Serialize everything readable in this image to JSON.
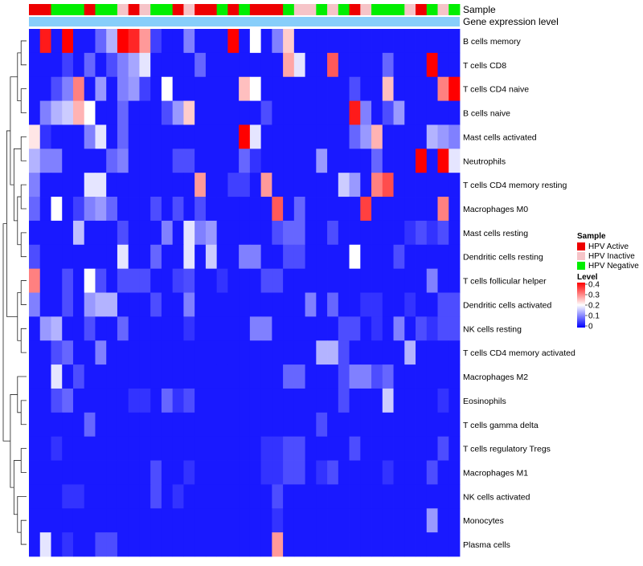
{
  "chart_data": {
    "type": "heatmap",
    "annotation_tracks": [
      "Sample",
      "Gene expression level"
    ],
    "sample_groups": {
      "title": "Sample",
      "entries": [
        {
          "label": "HPV Active",
          "color": "#ee0000"
        },
        {
          "label": "HPV Inactive",
          "color": "#f6c4c8"
        },
        {
          "label": "HPV Negative",
          "color": "#00ee00"
        }
      ]
    },
    "expression_bar_color": "#87cefa",
    "sample_annotation": [
      "A",
      "A",
      "N",
      "N",
      "N",
      "A",
      "N",
      "N",
      "I",
      "A",
      "I",
      "N",
      "N",
      "A",
      "I",
      "A",
      "A",
      "N",
      "A",
      "N",
      "A",
      "A",
      "A",
      "N",
      "I",
      "I",
      "N",
      "I",
      "N",
      "A",
      "I",
      "N",
      "N",
      "N",
      "I",
      "A",
      "N",
      "I",
      "N"
    ],
    "level_scale": {
      "title": "Level",
      "ticks": [
        "0.4",
        "0.3",
        "0.2",
        "0.1",
        "0"
      ],
      "range": [
        0,
        0.4
      ],
      "colors": [
        "#0000ff",
        "#ffffff",
        "#ff0000"
      ]
    },
    "rows": [
      "B cells memory",
      "T cells CD8",
      "T cells CD4 naive",
      "B cells naive",
      "Mast cells activated",
      "Neutrophils",
      "T cells CD4 memory resting",
      "Macrophages M0",
      "Mast cells resting",
      "Dendritic cells resting",
      "T cells follicular helper",
      "Dendritic cells activated",
      "NK cells resting",
      "T cells CD4 memory activated",
      "Macrophages M2",
      "Eosinophils",
      "T cells gamma delta",
      "T cells regulatory  Tregs",
      "Macrophages M1",
      "NK cells activated",
      "Monocytes",
      "Plasma cells"
    ],
    "values": [
      [
        0.02,
        0.38,
        0.02,
        0.4,
        0.02,
        0.02,
        0.08,
        0.14,
        0.4,
        0.37,
        0.28,
        0.05,
        0.02,
        0.02,
        0.1,
        0.02,
        0.02,
        0.02,
        0.4,
        0.02,
        0.2,
        0.02,
        0.1,
        0.24,
        0.02,
        0.02,
        0.02,
        0.02,
        0.02,
        0.02,
        0.02,
        0.02,
        0.02,
        0.02,
        0.02,
        0.02,
        0.02,
        0.02,
        0.02
      ],
      [
        0.02,
        0.02,
        0.02,
        0.05,
        0.02,
        0.08,
        0.02,
        0.06,
        0.1,
        0.13,
        0.18,
        0.02,
        0.02,
        0.02,
        0.02,
        0.08,
        0.02,
        0.02,
        0.02,
        0.02,
        0.02,
        0.02,
        0.02,
        0.27,
        0.18,
        0.02,
        0.02,
        0.33,
        0.02,
        0.02,
        0.02,
        0.02,
        0.08,
        0.02,
        0.02,
        0.02,
        0.4,
        0.02,
        0.02
      ],
      [
        0.02,
        0.02,
        0.06,
        0.1,
        0.3,
        0.02,
        0.12,
        0.02,
        0.1,
        0.12,
        0.05,
        0.02,
        0.2,
        0.02,
        0.02,
        0.02,
        0.02,
        0.02,
        0.02,
        0.25,
        0.2,
        0.02,
        0.02,
        0.02,
        0.02,
        0.02,
        0.02,
        0.02,
        0.02,
        0.06,
        0.02,
        0.02,
        0.25,
        0.02,
        0.02,
        0.02,
        0.02,
        0.3,
        0.4
      ],
      [
        0.02,
        0.1,
        0.14,
        0.16,
        0.26,
        0.2,
        0.02,
        0.02,
        0.08,
        0.02,
        0.02,
        0.02,
        0.06,
        0.12,
        0.24,
        0.02,
        0.02,
        0.02,
        0.02,
        0.02,
        0.02,
        0.06,
        0.02,
        0.02,
        0.02,
        0.02,
        0.02,
        0.02,
        0.02,
        0.38,
        0.1,
        0.02,
        0.06,
        0.12,
        0.02,
        0.02,
        0.02,
        0.02,
        0.02
      ],
      [
        0.22,
        0.04,
        0.02,
        0.02,
        0.02,
        0.1,
        0.18,
        0.02,
        0.08,
        0.02,
        0.02,
        0.02,
        0.02,
        0.02,
        0.02,
        0.02,
        0.02,
        0.02,
        0.02,
        0.4,
        0.18,
        0.02,
        0.02,
        0.02,
        0.02,
        0.02,
        0.02,
        0.02,
        0.02,
        0.08,
        0.12,
        0.26,
        0.02,
        0.02,
        0.02,
        0.02,
        0.14,
        0.12,
        0.1
      ],
      [
        0.14,
        0.1,
        0.1,
        0.02,
        0.02,
        0.02,
        0.02,
        0.08,
        0.1,
        0.02,
        0.02,
        0.02,
        0.02,
        0.06,
        0.06,
        0.02,
        0.02,
        0.02,
        0.02,
        0.08,
        0.04,
        0.02,
        0.02,
        0.02,
        0.02,
        0.02,
        0.12,
        0.02,
        0.02,
        0.02,
        0.02,
        0.08,
        0.02,
        0.02,
        0.02,
        0.4,
        0.02,
        0.4,
        0.18
      ],
      [
        0.1,
        0.02,
        0.02,
        0.02,
        0.02,
        0.18,
        0.18,
        0.02,
        0.02,
        0.02,
        0.02,
        0.02,
        0.02,
        0.02,
        0.02,
        0.28,
        0.02,
        0.02,
        0.05,
        0.05,
        0.02,
        0.28,
        0.02,
        0.02,
        0.02,
        0.02,
        0.02,
        0.02,
        0.16,
        0.12,
        0.02,
        0.3,
        0.34,
        0.02,
        0.02,
        0.02,
        0.02,
        0.02,
        0.02
      ],
      [
        0.08,
        0.02,
        0.2,
        0.02,
        0.05,
        0.1,
        0.12,
        0.08,
        0.02,
        0.02,
        0.02,
        0.06,
        0.02,
        0.06,
        0.02,
        0.06,
        0.02,
        0.02,
        0.02,
        0.02,
        0.02,
        0.02,
        0.33,
        0.02,
        0.08,
        0.02,
        0.02,
        0.02,
        0.02,
        0.02,
        0.35,
        0.02,
        0.02,
        0.02,
        0.02,
        0.02,
        0.02,
        0.3,
        0.02
      ],
      [
        0.02,
        0.02,
        0.02,
        0.02,
        0.15,
        0.02,
        0.02,
        0.02,
        0.06,
        0.02,
        0.02,
        0.02,
        0.1,
        0.02,
        0.18,
        0.1,
        0.12,
        0.02,
        0.02,
        0.02,
        0.02,
        0.02,
        0.06,
        0.08,
        0.08,
        0.02,
        0.02,
        0.06,
        0.02,
        0.02,
        0.02,
        0.02,
        0.02,
        0.02,
        0.04,
        0.06,
        0.04,
        0.06,
        0.02
      ],
      [
        0.06,
        0.02,
        0.02,
        0.02,
        0.02,
        0.02,
        0.02,
        0.02,
        0.18,
        0.02,
        0.02,
        0.08,
        0.02,
        0.02,
        0.18,
        0.02,
        0.16,
        0.02,
        0.02,
        0.1,
        0.1,
        0.02,
        0.02,
        0.06,
        0.06,
        0.02,
        0.02,
        0.02,
        0.02,
        0.2,
        0.02,
        0.02,
        0.02,
        0.06,
        0.02,
        0.02,
        0.02,
        0.02,
        0.02
      ],
      [
        0.3,
        0.02,
        0.02,
        0.06,
        0.02,
        0.2,
        0.06,
        0.02,
        0.06,
        0.06,
        0.06,
        0.02,
        0.02,
        0.05,
        0.06,
        0.02,
        0.02,
        0.04,
        0.02,
        0.02,
        0.02,
        0.06,
        0.06,
        0.02,
        0.02,
        0.02,
        0.02,
        0.02,
        0.02,
        0.02,
        0.02,
        0.02,
        0.02,
        0.02,
        0.02,
        0.02,
        0.1,
        0.02,
        0.02
      ],
      [
        0.1,
        0.02,
        0.02,
        0.06,
        0.02,
        0.12,
        0.14,
        0.14,
        0.02,
        0.02,
        0.02,
        0.06,
        0.02,
        0.02,
        0.1,
        0.02,
        0.02,
        0.02,
        0.02,
        0.02,
        0.02,
        0.02,
        0.02,
        0.02,
        0.02,
        0.1,
        0.02,
        0.08,
        0.02,
        0.02,
        0.04,
        0.04,
        0.02,
        0.02,
        0.04,
        0.02,
        0.02,
        0.06,
        0.06
      ],
      [
        0.02,
        0.12,
        0.14,
        0.02,
        0.02,
        0.06,
        0.02,
        0.02,
        0.08,
        0.02,
        0.02,
        0.02,
        0.02,
        0.02,
        0.04,
        0.02,
        0.02,
        0.02,
        0.02,
        0.02,
        0.1,
        0.1,
        0.02,
        0.02,
        0.02,
        0.02,
        0.02,
        0.02,
        0.06,
        0.06,
        0.02,
        0.04,
        0.02,
        0.1,
        0.02,
        0.06,
        0.04,
        0.06,
        0.06
      ],
      [
        0.02,
        0.02,
        0.06,
        0.08,
        0.02,
        0.02,
        0.1,
        0.02,
        0.02,
        0.02,
        0.02,
        0.02,
        0.02,
        0.02,
        0.02,
        0.02,
        0.02,
        0.02,
        0.02,
        0.02,
        0.02,
        0.02,
        0.02,
        0.02,
        0.02,
        0.02,
        0.14,
        0.14,
        0.06,
        0.02,
        0.02,
        0.02,
        0.02,
        0.02,
        0.14,
        0.02,
        0.02,
        0.02,
        0.02
      ],
      [
        0.02,
        0.02,
        0.18,
        0.02,
        0.06,
        0.02,
        0.02,
        0.02,
        0.02,
        0.02,
        0.02,
        0.02,
        0.02,
        0.02,
        0.02,
        0.02,
        0.02,
        0.02,
        0.02,
        0.02,
        0.02,
        0.02,
        0.02,
        0.08,
        0.08,
        0.02,
        0.02,
        0.02,
        0.06,
        0.1,
        0.1,
        0.06,
        0.08,
        0.02,
        0.02,
        0.02,
        0.02,
        0.02,
        0.02
      ],
      [
        0.02,
        0.02,
        0.06,
        0.08,
        0.02,
        0.02,
        0.02,
        0.02,
        0.02,
        0.04,
        0.04,
        0.02,
        0.08,
        0.04,
        0.06,
        0.02,
        0.02,
        0.02,
        0.02,
        0.02,
        0.02,
        0.02,
        0.02,
        0.02,
        0.02,
        0.02,
        0.02,
        0.02,
        0.06,
        0.02,
        0.02,
        0.02,
        0.16,
        0.02,
        0.02,
        0.02,
        0.02,
        0.04,
        0.02
      ],
      [
        0.02,
        0.02,
        0.02,
        0.02,
        0.02,
        0.08,
        0.02,
        0.02,
        0.02,
        0.02,
        0.02,
        0.02,
        0.02,
        0.02,
        0.02,
        0.02,
        0.02,
        0.02,
        0.02,
        0.02,
        0.02,
        0.02,
        0.02,
        0.02,
        0.02,
        0.02,
        0.06,
        0.02,
        0.02,
        0.02,
        0.02,
        0.02,
        0.02,
        0.02,
        0.02,
        0.02,
        0.02,
        0.02,
        0.02
      ],
      [
        0.02,
        0.02,
        0.04,
        0.02,
        0.02,
        0.02,
        0.02,
        0.02,
        0.02,
        0.02,
        0.02,
        0.02,
        0.02,
        0.02,
        0.02,
        0.02,
        0.02,
        0.02,
        0.02,
        0.02,
        0.02,
        0.04,
        0.04,
        0.06,
        0.06,
        0.02,
        0.02,
        0.02,
        0.02,
        0.06,
        0.02,
        0.02,
        0.02,
        0.02,
        0.02,
        0.02,
        0.02,
        0.06,
        0.02
      ],
      [
        0.02,
        0.02,
        0.02,
        0.02,
        0.02,
        0.02,
        0.02,
        0.02,
        0.02,
        0.02,
        0.02,
        0.06,
        0.02,
        0.02,
        0.04,
        0.02,
        0.02,
        0.02,
        0.02,
        0.02,
        0.02,
        0.04,
        0.04,
        0.06,
        0.06,
        0.02,
        0.04,
        0.06,
        0.02,
        0.02,
        0.02,
        0.02,
        0.04,
        0.02,
        0.02,
        0.02,
        0.06,
        0.02,
        0.02
      ],
      [
        0.02,
        0.02,
        0.02,
        0.04,
        0.04,
        0.02,
        0.02,
        0.02,
        0.02,
        0.02,
        0.02,
        0.06,
        0.02,
        0.04,
        0.02,
        0.02,
        0.02,
        0.02,
        0.02,
        0.02,
        0.02,
        0.02,
        0.06,
        0.02,
        0.02,
        0.02,
        0.02,
        0.02,
        0.02,
        0.02,
        0.02,
        0.02,
        0.02,
        0.02,
        0.02,
        0.02,
        0.02,
        0.02,
        0.02
      ],
      [
        0.02,
        0.02,
        0.02,
        0.02,
        0.02,
        0.02,
        0.02,
        0.02,
        0.02,
        0.02,
        0.02,
        0.02,
        0.02,
        0.02,
        0.02,
        0.02,
        0.02,
        0.02,
        0.02,
        0.02,
        0.02,
        0.02,
        0.04,
        0.02,
        0.02,
        0.02,
        0.02,
        0.02,
        0.02,
        0.02,
        0.02,
        0.02,
        0.02,
        0.02,
        0.02,
        0.02,
        0.12,
        0.02,
        0.02
      ],
      [
        0.02,
        0.18,
        0.02,
        0.04,
        0.02,
        0.02,
        0.06,
        0.06,
        0.02,
        0.02,
        0.02,
        0.02,
        0.02,
        0.02,
        0.02,
        0.02,
        0.02,
        0.02,
        0.02,
        0.02,
        0.02,
        0.02,
        0.28,
        0.02,
        0.02,
        0.02,
        0.02,
        0.02,
        0.02,
        0.02,
        0.02,
        0.02,
        0.02,
        0.02,
        0.02,
        0.02,
        0.02,
        0.02,
        0.02
      ]
    ],
    "row_dendrogram": true
  }
}
